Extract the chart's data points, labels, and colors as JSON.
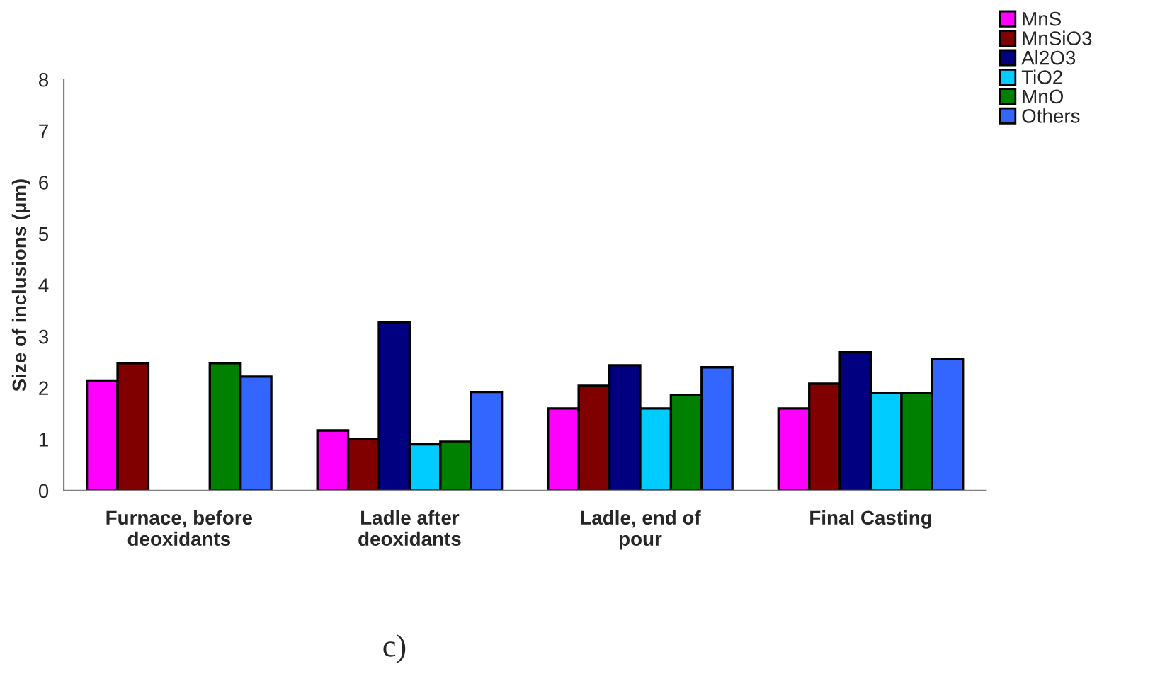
{
  "chart_data": {
    "type": "bar",
    "ylabel": "Size of inclusions (µm)",
    "categories": [
      "Furnace, before\ndeoxidants",
      "Ladle after\ndeoxidants",
      "Ladle, end of\npour",
      "Final Casting"
    ],
    "series": [
      {
        "name": "MnS",
        "color": "#ff00ff",
        "values": [
          2.13,
          1.17,
          1.6,
          1.6
        ]
      },
      {
        "name": "MnSiO3",
        "color": "#800000",
        "values": [
          2.48,
          1.0,
          2.04,
          2.08
        ]
      },
      {
        "name": "Al2O3",
        "color": "#000080",
        "values": [
          null,
          3.27,
          2.44,
          2.69
        ]
      },
      {
        "name": "TiO2",
        "color": "#00ccff",
        "values": [
          null,
          0.9,
          1.6,
          1.9
        ]
      },
      {
        "name": "MnO",
        "color": "#008000",
        "values": [
          2.48,
          0.95,
          1.86,
          1.9
        ]
      },
      {
        "name": "Others",
        "color": "#3366ff",
        "values": [
          2.22,
          1.92,
          2.4,
          2.56
        ]
      }
    ],
    "ylim": [
      0,
      8
    ],
    "yticks": [
      0,
      1,
      2,
      3,
      4,
      5,
      6,
      7,
      8
    ],
    "grid": false,
    "legend": "top right",
    "annotations": [
      "c)"
    ]
  }
}
